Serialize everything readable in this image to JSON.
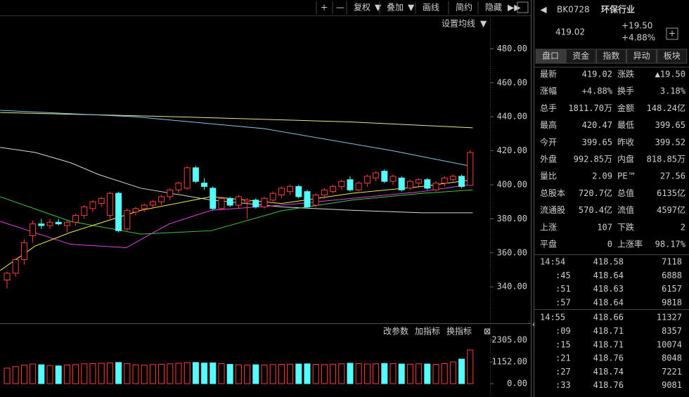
{
  "toolbar": {
    "buttons": [
      "+",
      "—",
      "复权",
      "叠加",
      "画线",
      "简约",
      "隐藏"
    ]
  },
  "price_chart": {
    "setting": "设置均线",
    "ylim": [
      319.4,
      499.6
    ],
    "yticks": [
      {
        "value": 480,
        "label": "480.00"
      },
      {
        "value": 460,
        "label": "460.00"
      },
      {
        "value": 440,
        "label": "440.00"
      },
      {
        "value": 420,
        "label": "420.00"
      },
      {
        "value": 400,
        "label": "400.00"
      },
      {
        "value": 380,
        "label": "380.00"
      },
      {
        "value": 360,
        "label": "360.00"
      },
      {
        "value": 340,
        "label": "340.00"
      }
    ],
    "up_color": "#ff3c3c",
    "down_color": "#54fcfc",
    "candles": [
      [
        344,
        349,
        339,
        348
      ],
      [
        348,
        357,
        346,
        356
      ],
      [
        356,
        368,
        353,
        366
      ],
      [
        370,
        379,
        366,
        377
      ],
      [
        377,
        380,
        374,
        376
      ],
      [
        376,
        380,
        374,
        378
      ],
      [
        378,
        380,
        376,
        377
      ],
      [
        376,
        379,
        372,
        378
      ],
      [
        378,
        383,
        376,
        382
      ],
      [
        382,
        388,
        380,
        387
      ],
      [
        386,
        391,
        384,
        390
      ],
      [
        389,
        393,
        387,
        392
      ],
      [
        382,
        396,
        380,
        395
      ],
      [
        395,
        396,
        372,
        373
      ],
      [
        374,
        386,
        373,
        385
      ],
      [
        384,
        387,
        382,
        386
      ],
      [
        386,
        389,
        384,
        388
      ],
      [
        388,
        391,
        386,
        390
      ],
      [
        390,
        394,
        388,
        393
      ],
      [
        393,
        398,
        391,
        397
      ],
      [
        397,
        402,
        395,
        401
      ],
      [
        398,
        411,
        397,
        410
      ],
      [
        410,
        411,
        401,
        402
      ],
      [
        401,
        404,
        397,
        399
      ],
      [
        398,
        399,
        385,
        386
      ],
      [
        386,
        393,
        385,
        392
      ],
      [
        392,
        393,
        387,
        388
      ],
      [
        388,
        394,
        386,
        393
      ],
      [
        390,
        392,
        380,
        391
      ],
      [
        391,
        392,
        386,
        387
      ],
      [
        387,
        393,
        386,
        392
      ],
      [
        391,
        396,
        390,
        395
      ],
      [
        394,
        399,
        392,
        398
      ],
      [
        396,
        400,
        394,
        399
      ],
      [
        399,
        400,
        392,
        393
      ],
      [
        396,
        397,
        386,
        387
      ],
      [
        388,
        395,
        387,
        394
      ],
      [
        394,
        398,
        392,
        397
      ],
      [
        396,
        400,
        395,
        399
      ],
      [
        399,
        403,
        397,
        402
      ],
      [
        403,
        405,
        396,
        397
      ],
      [
        397,
        402,
        396,
        401
      ],
      [
        401,
        406,
        399,
        405
      ],
      [
        404,
        408,
        402,
        407
      ],
      [
        408,
        409,
        401,
        402
      ],
      [
        402,
        406,
        400,
        405
      ],
      [
        404,
        405,
        396,
        397
      ],
      [
        398,
        403,
        397,
        402
      ],
      [
        401,
        404,
        399,
        403
      ],
      [
        403,
        404,
        397,
        398
      ],
      [
        397,
        402,
        396,
        401
      ],
      [
        401,
        405,
        399,
        404
      ],
      [
        403,
        406,
        402,
        405
      ],
      [
        405,
        406,
        398,
        399
      ],
      [
        399.65,
        420.47,
        399.65,
        419.02
      ]
    ],
    "lines": [
      {
        "color": "#e8e88a",
        "points": [
          [
            -0.8,
            442.5
          ],
          [
            20,
            440
          ],
          [
            40,
            437
          ],
          [
            54.3,
            433.5
          ]
        ]
      },
      {
        "color": "#7ec8e8",
        "points": [
          [
            -0.8,
            443.8
          ],
          [
            15,
            440
          ],
          [
            30,
            433
          ],
          [
            45,
            420
          ],
          [
            54.3,
            410.7
          ]
        ]
      },
      {
        "color": "#d8d8d8",
        "points": [
          [
            -0.8,
            422
          ],
          [
            3.3,
            419
          ],
          [
            7.4,
            413
          ],
          [
            10.7,
            406
          ],
          [
            15.6,
            398
          ],
          [
            23.8,
            391
          ],
          [
            32,
            387
          ],
          [
            40.2,
            385
          ],
          [
            48.4,
            383.5
          ],
          [
            54.3,
            383.5
          ]
        ]
      },
      {
        "color": "#3cc83c",
        "points": [
          [
            -0.8,
            393
          ],
          [
            7.4,
            378.5
          ],
          [
            15.6,
            371
          ],
          [
            23.8,
            373
          ],
          [
            32,
            384.7
          ],
          [
            40.2,
            391
          ],
          [
            48.4,
            395
          ],
          [
            54.3,
            397
          ]
        ]
      },
      {
        "color": "#e040e0",
        "points": [
          [
            -0.8,
            378.5
          ],
          [
            7.4,
            365
          ],
          [
            13.9,
            363
          ],
          [
            18.9,
            377
          ],
          [
            23.8,
            385
          ],
          [
            32,
            388
          ],
          [
            40.2,
            392
          ],
          [
            48.4,
            396
          ],
          [
            54.3,
            400.4
          ]
        ]
      },
      {
        "color": "#f0f040",
        "points": [
          [
            -0.8,
            349.6
          ],
          [
            3.3,
            364
          ],
          [
            7.4,
            372
          ],
          [
            15.6,
            385
          ],
          [
            23.8,
            393
          ],
          [
            32,
            389
          ],
          [
            40.2,
            395
          ],
          [
            48.4,
            399
          ],
          [
            54.3,
            403
          ]
        ]
      }
    ]
  },
  "volume_panel": {
    "buttons": [
      "改参数",
      "加指标",
      "换指标"
    ],
    "ylim": [
      -372,
      2900
    ],
    "yticks": [
      {
        "value": 2305,
        "label": "2305.00"
      },
      {
        "value": 1152,
        "label": "1152.00"
      },
      {
        "value": 0,
        "label": "0.00"
      }
    ],
    "volumes": [
      820,
      900,
      980,
      1040,
      1000,
      960,
      940,
      990,
      1010,
      1050,
      1060,
      1080,
      1100,
      1120,
      1060,
      1000,
      980,
      1010,
      1030,
      1050,
      1080,
      1110,
      1120,
      1090,
      1100,
      1060,
      1020,
      1000,
      980,
      1000,
      990,
      1010,
      1020,
      1030,
      1040,
      1050,
      1020,
      1010,
      1030,
      1050,
      1080,
      1060,
      1040,
      1050,
      1070,
      1060,
      1040,
      1030,
      1050,
      1040,
      1020,
      1060,
      1150,
      1300,
      1785
    ]
  },
  "quote": {
    "code": "BK0728",
    "name": "环保行业",
    "price": "419.02",
    "change": "+19.50",
    "pct": "+4.88%",
    "tabs": [
      "盘口",
      "资金",
      "指数",
      "异动",
      "板块"
    ],
    "rows": [
      {
        "cells": [
          "最新",
          "419.02",
          "涨跌",
          "▲19.50"
        ],
        "colors": [
          "#ff4a4a",
          "#ff4a4a"
        ]
      },
      {
        "cells": [
          "涨幅",
          "+4.88%",
          "换手",
          "3.18%"
        ],
        "colors": [
          "#ff4a4a",
          "#e6e6e6"
        ]
      },
      {
        "cells": [
          "总手",
          "1811.70万",
          "金额",
          "148.24亿"
        ],
        "colors": [
          "#e6e6e6",
          "#54fcfc"
        ]
      },
      {
        "cells": [
          "最高",
          "420.47",
          "最低",
          "399.65"
        ],
        "colors": [
          "#ff4a4a",
          "#ff4a4a"
        ]
      },
      {
        "cells": [
          "今开",
          "399.65",
          "昨收",
          "399.52"
        ],
        "colors": [
          "#ff4a4a",
          "#e6e6e6"
        ]
      },
      {
        "cells": [
          "外盘",
          "992.85万",
          "内盘",
          "818.85万"
        ],
        "colors": [
          "#ff4a4a",
          "#3cdc3c"
        ]
      },
      {
        "cells": [
          "量比",
          "2.09",
          "PE™",
          "27.56"
        ],
        "colors": [
          "#ff4a4a",
          "#e6e6e6"
        ]
      },
      {
        "cells": [
          "总股本",
          "720.7亿",
          "总值",
          "6135亿"
        ],
        "colors": [
          "#e6e6e6",
          "#e6e6e6"
        ]
      },
      {
        "cells": [
          "流通股",
          "570.4亿",
          "流值",
          "4597亿"
        ],
        "colors": [
          "#e6e6e6",
          "#e6e6e6"
        ]
      },
      {
        "cells": [
          "上涨",
          "107",
          "下跌",
          "2"
        ],
        "colors": [
          "#ff4a4a",
          "#3cdc3c"
        ]
      },
      {
        "cells": [
          "平盘",
          "0",
          "上涨率",
          "98.17%"
        ],
        "colors": [
          "#e6e6e6",
          "#e6e6e6"
        ]
      }
    ],
    "trades": [
      {
        "time": "14:54",
        "price": "418.58",
        "vol": "7118",
        "color": "#3cdc3c"
      },
      {
        "time": ":45",
        "price": "418.64",
        "vol": "6888",
        "color": "#ff4a4a"
      },
      {
        "time": ":51",
        "price": "418.63",
        "vol": "6157",
        "color": "#3cdc3c"
      },
      {
        "time": ":57",
        "price": "418.64",
        "vol": "9818",
        "color": "#ff4a4a"
      },
      {
        "time": "14:55",
        "price": "418.66",
        "vol": "11327",
        "color": "#ff4a4a"
      },
      {
        "time": ":09",
        "price": "418.71",
        "vol": "8357",
        "color": "#ff4a4a"
      },
      {
        "time": ":15",
        "price": "418.71",
        "vol": "10074",
        "color": "#ff4a4a"
      },
      {
        "time": ":21",
        "price": "418.76",
        "vol": "8048",
        "color": "#ff4a4a"
      },
      {
        "time": ":27",
        "price": "418.74",
        "vol": "7221",
        "color": "#3cdc3c"
      },
      {
        "time": ":33",
        "price": "418.76",
        "vol": "9081",
        "color": "#ff4a4a"
      }
    ]
  }
}
